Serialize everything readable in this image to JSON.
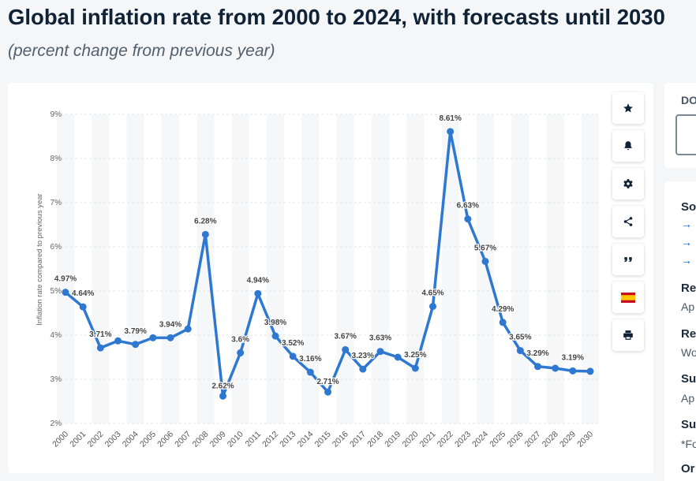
{
  "title": "Global inflation rate from 2000 to 2024, with forecasts until 2030",
  "subtitle": "(percent change from previous year)",
  "chart_data": {
    "type": "line",
    "title": "Global inflation rate from 2000 to 2024, with forecasts until 2030",
    "xlabel": "",
    "ylabel": "Inflation rate compared to previous year",
    "ylim": [
      2,
      9
    ],
    "yticks": [
      "2%",
      "3%",
      "4%",
      "5%",
      "6%",
      "7%",
      "8%",
      "9%"
    ],
    "grid": true,
    "legend": "none",
    "color": "#2f78d1",
    "x": [
      "2000",
      "2001",
      "2002",
      "2003",
      "2004",
      "2005",
      "2006",
      "2007",
      "2008",
      "2009",
      "2010",
      "2011",
      "2012",
      "2013",
      "2014",
      "2015",
      "2016",
      "2017",
      "2018",
      "2019",
      "2020",
      "2021",
      "2022",
      "2023",
      "2024",
      "2025",
      "2026",
      "2027",
      "2028",
      "2029",
      "2030"
    ],
    "values": [
      4.97,
      4.64,
      3.71,
      3.87,
      3.79,
      3.94,
      3.94,
      4.14,
      6.28,
      2.62,
      3.6,
      4.94,
      3.98,
      3.52,
      3.16,
      2.71,
      3.67,
      3.23,
      3.63,
      3.5,
      3.25,
      4.65,
      8.61,
      6.63,
      5.67,
      4.29,
      3.65,
      3.29,
      3.25,
      3.19,
      3.18
    ],
    "data_labels": [
      "4.97%",
      "4.64%",
      "3.71%",
      "",
      "3.79%",
      "",
      "3.94%",
      "",
      "6.28%",
      "2.62%",
      "3.6%",
      "4.94%",
      "3.98%",
      "3.52%",
      "3.16%",
      "2.71%",
      "3.67%",
      "3.23%",
      "3.63%",
      "",
      "3.25%",
      "4.65%",
      "8.61%",
      "6.63%",
      "5.67%",
      "4.29%",
      "3.65%",
      "3.29%",
      "",
      "3.19%",
      ""
    ]
  },
  "toolbar": [
    {
      "name": "favorite-button",
      "icon": "star-icon"
    },
    {
      "name": "notification-button",
      "icon": "bell-icon"
    },
    {
      "name": "settings-button",
      "icon": "gear-icon"
    },
    {
      "name": "share-button",
      "icon": "share-icon"
    },
    {
      "name": "cite-button",
      "icon": "quote-icon"
    },
    {
      "name": "language-button",
      "icon": "spain-flag-icon"
    },
    {
      "name": "print-button",
      "icon": "print-icon"
    }
  ],
  "side_panel": {
    "download_label": "DO",
    "source_label": "So",
    "release_label": "Re",
    "release_value": "Ap",
    "region_label": "Re",
    "region_value": "Wo",
    "survey_label": "Su",
    "survey_value": "Ap",
    "supplementary_label": "Su",
    "supplementary_value": "*Fo",
    "other_label": "Or"
  }
}
